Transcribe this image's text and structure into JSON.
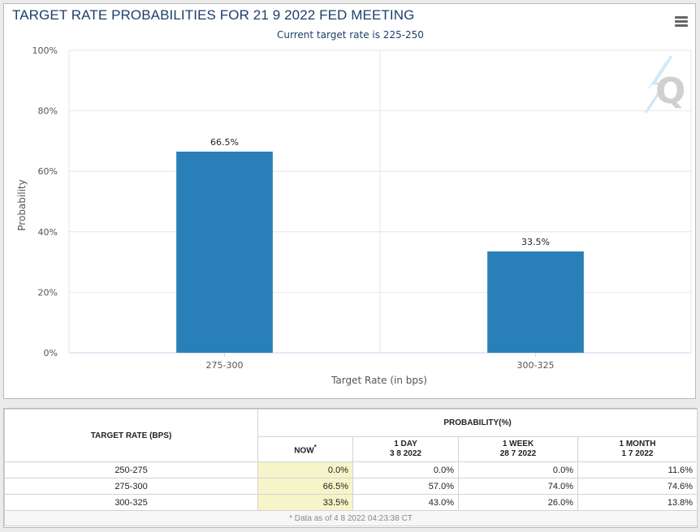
{
  "chart": {
    "title": "TARGET RATE PROBABILITIES FOR 21 9 2022 FED MEETING",
    "subtitle": "Current target rate is 225-250",
    "menu_icon": "hamburger-menu-icon",
    "watermark": "Q",
    "watermark_icon": "cme-q-logo-icon",
    "bar_color": "#2980b9"
  },
  "chart_data": {
    "type": "bar",
    "categories": [
      "275-300",
      "300-325"
    ],
    "values": [
      66.5,
      33.5
    ],
    "data_labels": [
      "66.5%",
      "33.5%"
    ],
    "xlabel": "Target Rate (in bps)",
    "ylabel": "Probability",
    "ylim": [
      0,
      100
    ],
    "yticks": [
      0,
      20,
      40,
      60,
      80,
      100
    ],
    "ytick_labels": [
      "0%",
      "20%",
      "40%",
      "60%",
      "80%",
      "100%"
    ],
    "grid": true,
    "legend": "none"
  },
  "table": {
    "rate_header": "TARGET RATE (BPS)",
    "prob_header": "PROBABILITY(%)",
    "columns": [
      {
        "label": "NOW",
        "sup": "*",
        "date": ""
      },
      {
        "label": "1 DAY",
        "date": "3 8 2022"
      },
      {
        "label": "1 WEEK",
        "date": "28 7 2022"
      },
      {
        "label": "1 MONTH",
        "date": "1 7 2022"
      }
    ],
    "rows": [
      {
        "rate": "250-275",
        "now": "0.0%",
        "day": "0.0%",
        "week": "0.0%",
        "month": "11.6%"
      },
      {
        "rate": "275-300",
        "now": "66.5%",
        "day": "57.0%",
        "week": "74.0%",
        "month": "74.6%"
      },
      {
        "rate": "300-325",
        "now": "33.5%",
        "day": "43.0%",
        "week": "26.0%",
        "month": "13.8%"
      }
    ],
    "footnote": "* Data as of 4 8 2022 04:23:38 CT"
  }
}
